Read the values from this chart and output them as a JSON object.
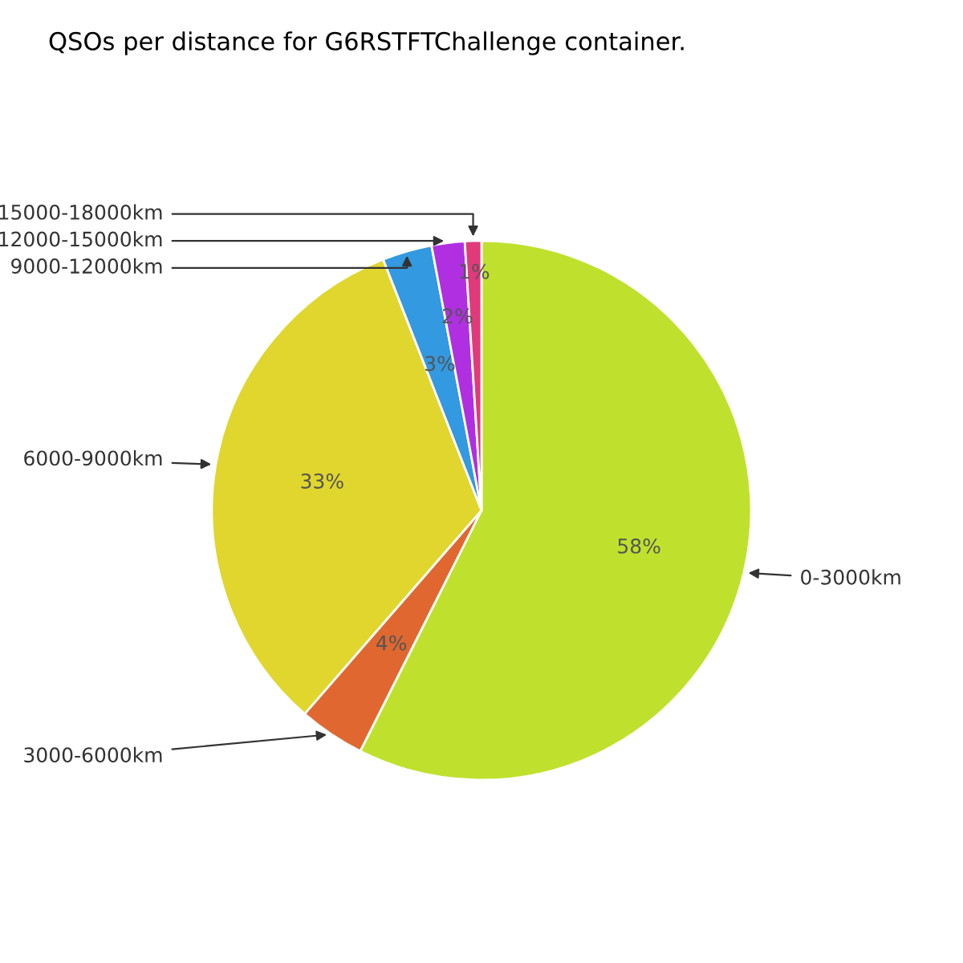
{
  "chart_data": {
    "type": "pie",
    "title": "QSOs per distance for G6RSTFTChallenge container.",
    "categories": [
      "0-3000km",
      "3000-6000km",
      "6000-9000km",
      "9000-12000km",
      "12000-15000km",
      "15000-18000km"
    ],
    "values": [
      58,
      4,
      33,
      3,
      2,
      1
    ],
    "value_labels": [
      "58%",
      "4%",
      "33%",
      "3%",
      "2%",
      "1%"
    ],
    "colors": [
      "#bfe12e",
      "#e06830",
      "#e0d62e",
      "#3399e0",
      "#b02fe0",
      "#e03a7a"
    ],
    "legend": false
  }
}
